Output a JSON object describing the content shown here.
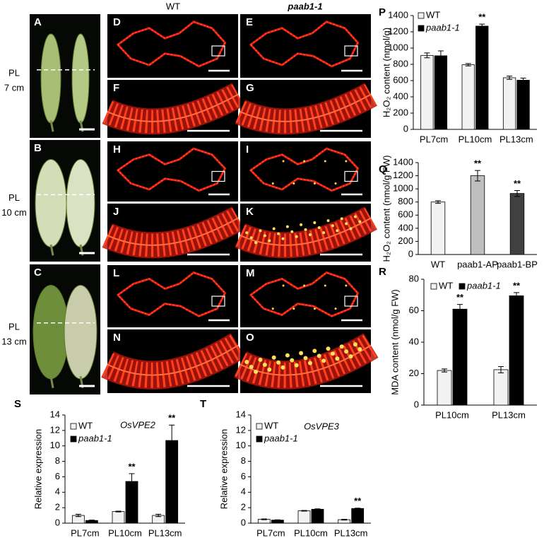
{
  "figure": {
    "column_headers": [
      "WT",
      "paab1-1"
    ],
    "row_labels": [
      [
        "PL",
        "7 cm"
      ],
      [
        "PL",
        "10 cm"
      ],
      [
        "PL",
        "13 cm"
      ]
    ],
    "panel_labels": [
      "A",
      "B",
      "C",
      "D",
      "E",
      "F",
      "G",
      "H",
      "I",
      "J",
      "K",
      "L",
      "M",
      "N",
      "O"
    ]
  },
  "chart_data": [
    {
      "type": "bar",
      "panel": "P",
      "y_label": "H₂O₂ content (nmol/g)",
      "categories": [
        "PL7cm",
        "PL10cm",
        "PL13cm"
      ],
      "ylim": [
        0,
        1400
      ],
      "yticks": [
        0,
        200,
        400,
        600,
        800,
        1000,
        1200,
        1400
      ],
      "series": [
        {
          "name": "WT",
          "color": "#f2f2f2",
          "values": [
            910,
            795,
            635
          ],
          "errors": [
            30,
            15,
            20
          ],
          "significance": [
            null,
            null,
            null
          ]
        },
        {
          "name": "paab1-1",
          "color": "#000000",
          "values": [
            905,
            1270,
            605
          ],
          "errors": [
            60,
            25,
            25
          ],
          "significance": [
            null,
            "**",
            null
          ]
        }
      ]
    },
    {
      "type": "bar",
      "panel": "Q",
      "y_label": "H₂O₂ content (nmol/g FW)",
      "categories": [
        "WT",
        "paab1-AP",
        "paab1-BP"
      ],
      "ylim": [
        0,
        1400
      ],
      "yticks": [
        0,
        200,
        400,
        600,
        800,
        1000,
        1200,
        1400
      ],
      "values": [
        800,
        1200,
        930
      ],
      "errors": [
        20,
        80,
        45
      ],
      "colors": [
        "#f2f2f2",
        "#bfbfbf",
        "#404040"
      ],
      "significance": [
        null,
        "**",
        "**"
      ]
    },
    {
      "type": "bar",
      "panel": "R",
      "y_label": "MDA content (nmol/g FW)",
      "categories": [
        "PL10cm",
        "PL13cm"
      ],
      "ylim": [
        0,
        80
      ],
      "yticks": [
        0,
        20,
        40,
        60,
        80
      ],
      "series": [
        {
          "name": "WT",
          "color": "#f2f2f2",
          "values": [
            22,
            22.5
          ],
          "errors": [
            1,
            2
          ],
          "significance": [
            null,
            null
          ]
        },
        {
          "name": "paab1-1",
          "color": "#000000",
          "values": [
            61,
            69.5
          ],
          "errors": [
            3,
            2
          ],
          "significance": [
            "**",
            "**"
          ]
        }
      ]
    },
    {
      "type": "bar",
      "panel": "S",
      "title": "OsVPE2",
      "y_label": "Relative expression",
      "categories": [
        "PL7cm",
        "PL10cm",
        "PL13cm"
      ],
      "ylim": [
        0,
        14
      ],
      "yticks": [
        0,
        2,
        4,
        6,
        8,
        10,
        12,
        14
      ],
      "series": [
        {
          "name": "WT",
          "color": "#f2f2f2",
          "values": [
            1.0,
            1.5,
            1.0
          ],
          "errors": [
            0.15,
            0.05,
            0.15
          ],
          "significance": [
            null,
            null,
            null
          ]
        },
        {
          "name": "paab1-1",
          "color": "#000000",
          "values": [
            0.35,
            5.4,
            10.7
          ],
          "errors": [
            0.05,
            1.0,
            2.0
          ],
          "significance": [
            null,
            "**",
            "**"
          ]
        }
      ]
    },
    {
      "type": "bar",
      "panel": "T",
      "title": "OsVPE3",
      "y_label": "Relative expression",
      "categories": [
        "PL7cm",
        "PL10cm",
        "PL13cm"
      ],
      "ylim": [
        0,
        14
      ],
      "yticks": [
        0,
        2,
        4,
        6,
        8,
        10,
        12,
        14
      ],
      "series": [
        {
          "name": "WT",
          "color": "#f2f2f2",
          "values": [
            0.5,
            1.6,
            0.45
          ],
          "errors": [
            0.05,
            0.05,
            0.05
          ],
          "significance": [
            null,
            null,
            null
          ]
        },
        {
          "name": "paab1-1",
          "color": "#000000",
          "values": [
            0.4,
            1.8,
            1.9
          ],
          "errors": [
            0.03,
            0.05,
            0.05
          ],
          "significance": [
            null,
            null,
            "**"
          ]
        }
      ]
    }
  ]
}
